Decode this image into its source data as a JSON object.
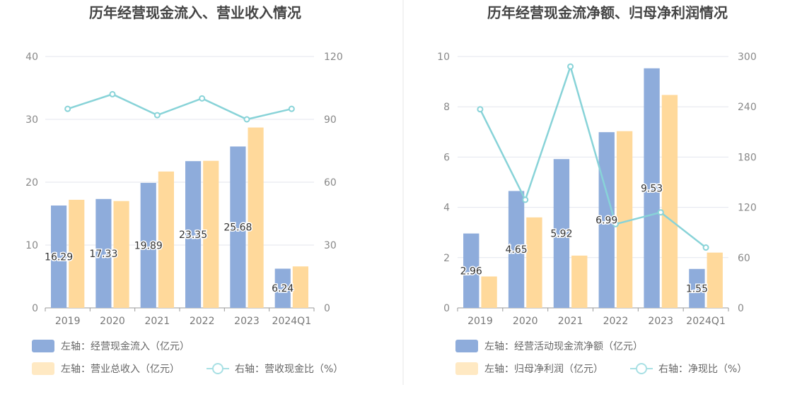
{
  "colors": {
    "bar_primary": "#8eacdb",
    "bar_secondary": "#ffd99b",
    "line": "#88d3d8",
    "grid": "#e3e6ee",
    "divider": "#e6e6e6"
  },
  "chart_data": [
    {
      "type": "bar",
      "title": "历年经营现金流入、营业收入情况",
      "categories": [
        "2019",
        "2020",
        "2021",
        "2022",
        "2023",
        "2024Q1"
      ],
      "left_axis": {
        "min": 0,
        "max": 40,
        "ticks": [
          "0",
          "10",
          "20",
          "30",
          "40"
        ]
      },
      "right_axis": {
        "min": 0,
        "max": 120,
        "ticks": [
          "0",
          "30",
          "60",
          "90",
          "120"
        ]
      },
      "series": [
        {
          "name": "左轴：经营现金流入（亿元）",
          "kind": "bar",
          "axis": "left",
          "values": [
            16.29,
            17.33,
            19.89,
            23.35,
            25.68,
            6.24
          ],
          "labels": [
            "16.29",
            "17.33",
            "19.89",
            "23.35",
            "25.68",
            "6.24"
          ]
        },
        {
          "name": "左轴：营业总收入（亿元）",
          "kind": "bar",
          "axis": "left",
          "values": [
            17.2,
            17.0,
            21.7,
            23.4,
            28.7,
            6.6
          ]
        },
        {
          "name": "右轴：营收现金比（%）",
          "kind": "line",
          "axis": "right",
          "values": [
            95,
            102,
            92,
            100,
            90,
            95
          ]
        }
      ]
    },
    {
      "type": "bar",
      "title": "历年经营现金流净额、归母净利润情况",
      "categories": [
        "2019",
        "2020",
        "2021",
        "2022",
        "2023",
        "2024Q1"
      ],
      "left_axis": {
        "min": 0,
        "max": 10,
        "ticks": [
          "0",
          "2",
          "4",
          "6",
          "8",
          "10"
        ]
      },
      "right_axis": {
        "min": 0,
        "max": 300,
        "ticks": [
          "0",
          "60",
          "120",
          "180",
          "240",
          "300"
        ]
      },
      "series": [
        {
          "name": "左轴：经营活动现金流净额（亿元）",
          "kind": "bar",
          "axis": "left",
          "values": [
            2.96,
            4.65,
            5.92,
            6.99,
            9.53,
            1.55
          ],
          "labels": [
            "2.96",
            "4.65",
            "5.92",
            "6.99",
            "9.53",
            "1.55"
          ]
        },
        {
          "name": "左轴：归母净利润（亿元）",
          "kind": "bar",
          "axis": "left",
          "values": [
            1.25,
            3.6,
            2.08,
            7.03,
            8.47,
            2.2
          ]
        },
        {
          "name": "右轴：净现比（%）",
          "kind": "line",
          "axis": "right",
          "values": [
            237,
            129,
            288,
            100,
            114,
            72
          ]
        }
      ]
    }
  ]
}
